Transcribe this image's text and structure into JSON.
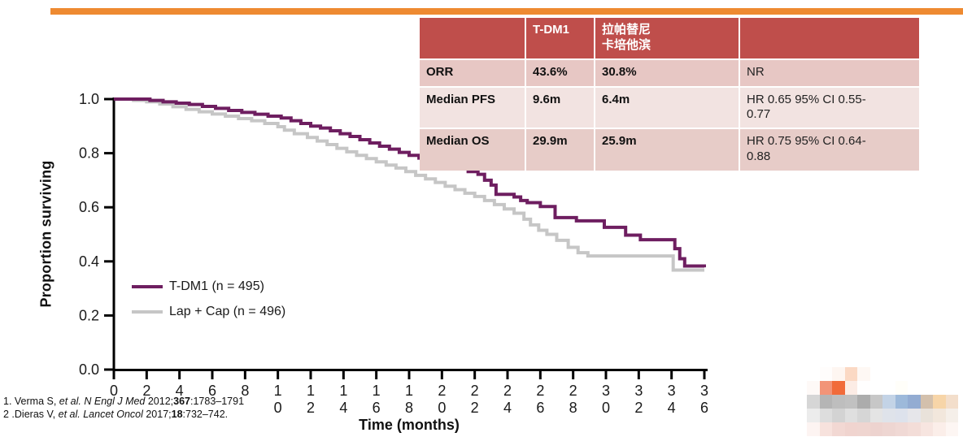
{
  "top_bar": {
    "color": "#ee8a31"
  },
  "table": {
    "header_bg": "#bf4e4b",
    "columns": {
      "c0": "",
      "c1": "T-DM1",
      "c2": "拉帕替尼\n卡培他滨",
      "c3": ""
    },
    "rows": [
      {
        "label": "ORR",
        "tdm1": "43.6%",
        "lapcap": "30.8%",
        "hr": "NR",
        "bg": "#e7c7c4"
      },
      {
        "label": "Median PFS",
        "tdm1": "9.6m",
        "lapcap": "6.4m",
        "hr": "HR 0.65 95% CI 0.55-\n0.77",
        "bg": "#f2e3e1"
      },
      {
        "label": "Median OS",
        "tdm1": "29.9m",
        "lapcap": "25.9m",
        "hr": "HR 0.75 95% CI 0.64-\n0.88",
        "bg": "#e7ccc8"
      }
    ]
  },
  "chart_data": {
    "type": "line",
    "subtype": "kaplan-meier-step",
    "title": "",
    "xlabel": "Time (months)",
    "ylabel": "Proportion surviving",
    "xlim": [
      0,
      36
    ],
    "ylim": [
      0,
      1
    ],
    "xticks": [
      0,
      2,
      4,
      6,
      8,
      10,
      12,
      14,
      16,
      18,
      20,
      22,
      24,
      26,
      28,
      30,
      32,
      34,
      36
    ],
    "yticks": [
      0.0,
      0.2,
      0.4,
      0.6,
      0.8,
      1.0
    ],
    "grid": false,
    "legend_position": "inside-lower-left",
    "legend": [
      {
        "label": "T-DM1 (n = 495)",
        "color": "#6e1e60"
      },
      {
        "label": "Lap + Cap (n = 496)",
        "color": "#c6c6c6"
      }
    ],
    "series": [
      {
        "name": "T-DM1 (n = 495)",
        "color": "#6e1e60",
        "points": [
          [
            0,
            1.0
          ],
          [
            1.6,
            1.0
          ],
          [
            2.2,
            0.995
          ],
          [
            3.0,
            0.99
          ],
          [
            3.8,
            0.985
          ],
          [
            4.6,
            0.98
          ],
          [
            5.4,
            0.973
          ],
          [
            6.2,
            0.966
          ],
          [
            7.0,
            0.958
          ],
          [
            7.8,
            0.951
          ],
          [
            8.6,
            0.944
          ],
          [
            9.4,
            0.937
          ],
          [
            10.2,
            0.93
          ],
          [
            10.8,
            0.92
          ],
          [
            11.4,
            0.91
          ],
          [
            12.0,
            0.9
          ],
          [
            12.6,
            0.893
          ],
          [
            13.2,
            0.883
          ],
          [
            13.8,
            0.872
          ],
          [
            14.4,
            0.862
          ],
          [
            15.0,
            0.85
          ],
          [
            15.6,
            0.838
          ],
          [
            16.2,
            0.826
          ],
          [
            16.8,
            0.815
          ],
          [
            17.4,
            0.803
          ],
          [
            18.0,
            0.792
          ],
          [
            18.6,
            0.782
          ],
          [
            19.2,
            0.772
          ],
          [
            19.8,
            0.762
          ],
          [
            20.4,
            0.752
          ],
          [
            21.0,
            0.742
          ],
          [
            21.6,
            0.732
          ],
          [
            22.2,
            0.722
          ],
          [
            22.6,
            0.7
          ],
          [
            23.0,
            0.682
          ],
          [
            23.3,
            0.648
          ],
          [
            24.4,
            0.638
          ],
          [
            24.8,
            0.625
          ],
          [
            25.2,
            0.617
          ],
          [
            26.0,
            0.603
          ],
          [
            26.9,
            0.562
          ],
          [
            28.2,
            0.55
          ],
          [
            29.9,
            0.526
          ],
          [
            31.2,
            0.497
          ],
          [
            32.1,
            0.48
          ],
          [
            34.2,
            0.447
          ],
          [
            34.5,
            0.41
          ],
          [
            34.8,
            0.383
          ],
          [
            36.0,
            0.378
          ]
        ]
      },
      {
        "name": "Lap + Cap (n = 496)",
        "color": "#c6c6c6",
        "points": [
          [
            0,
            1.0
          ],
          [
            1.2,
            0.995
          ],
          [
            2.0,
            0.99
          ],
          [
            2.8,
            0.982
          ],
          [
            3.6,
            0.972
          ],
          [
            4.4,
            0.962
          ],
          [
            5.2,
            0.953
          ],
          [
            6.0,
            0.945
          ],
          [
            6.8,
            0.937
          ],
          [
            7.6,
            0.928
          ],
          [
            8.4,
            0.92
          ],
          [
            9.2,
            0.91
          ],
          [
            10.0,
            0.898
          ],
          [
            10.4,
            0.885
          ],
          [
            11.0,
            0.872
          ],
          [
            11.8,
            0.858
          ],
          [
            12.4,
            0.845
          ],
          [
            13.0,
            0.832
          ],
          [
            13.6,
            0.818
          ],
          [
            14.2,
            0.805
          ],
          [
            14.8,
            0.792
          ],
          [
            15.4,
            0.78
          ],
          [
            16.0,
            0.768
          ],
          [
            16.6,
            0.756
          ],
          [
            17.2,
            0.745
          ],
          [
            17.8,
            0.732
          ],
          [
            18.4,
            0.718
          ],
          [
            19.0,
            0.705
          ],
          [
            19.6,
            0.692
          ],
          [
            20.2,
            0.678
          ],
          [
            20.8,
            0.665
          ],
          [
            21.4,
            0.652
          ],
          [
            22.0,
            0.64
          ],
          [
            22.6,
            0.625
          ],
          [
            23.2,
            0.61
          ],
          [
            23.8,
            0.594
          ],
          [
            24.4,
            0.578
          ],
          [
            25.0,
            0.556
          ],
          [
            25.4,
            0.535
          ],
          [
            25.9,
            0.515
          ],
          [
            26.4,
            0.5
          ],
          [
            27.0,
            0.478
          ],
          [
            27.7,
            0.452
          ],
          [
            28.3,
            0.432
          ],
          [
            28.9,
            0.42
          ],
          [
            34.1,
            0.368
          ],
          [
            36.0,
            0.368
          ]
        ]
      }
    ]
  },
  "references": [
    [
      {
        "t": "1. Verma S, ",
        "s": ""
      },
      {
        "t": "et al. N Engl J Med ",
        "s": "i"
      },
      {
        "t": "2012;",
        "s": ""
      },
      {
        "t": "367",
        "s": "b"
      },
      {
        "t": ":1783–1791",
        "s": ""
      }
    ],
    [
      {
        "t": "2 .Dieras V, ",
        "s": ""
      },
      {
        "t": "et al. Lancet Oncol ",
        "s": "i"
      },
      {
        "t": "2017;",
        "s": ""
      },
      {
        "t": "18",
        "s": "b"
      },
      {
        "t": ":732–742.",
        "s": ""
      }
    ]
  ],
  "logo": {
    "rows": [
      [
        "#ffffff",
        "#fffdfc",
        "#fef6f1",
        "#fbd9c4",
        "#fef8f4",
        "#ffffff",
        "#ffffff",
        "#ffffff",
        "#ffffff",
        "#ffffff",
        "#ffffff",
        "#ffffff"
      ],
      [
        "#fef9f7",
        "#f29478",
        "#f16b3a",
        "#fcece5",
        "#fffefe",
        "#ffffff",
        "#ffffff",
        "#fffef9",
        "#ffffff",
        "#ffffff",
        "#ffffff",
        "#ffffff"
      ],
      [
        "#d6d6d6",
        "#b5b5b5",
        "#bebebe",
        "#c1c1c1",
        "#acacac",
        "#c7c7c7",
        "#c3d3e6",
        "#9db9da",
        "#93acd2",
        "#d3c0ac",
        "#f7d5a8",
        "#f3decb"
      ],
      [
        "#ececec",
        "#dddddd",
        "#d3d3d3",
        "#dfdfdf",
        "#d6d6d6",
        "#e4e4e4",
        "#dfe3ea",
        "#dde2ec",
        "#e6e6ea",
        "#e9e2da",
        "#f2e7dc",
        "#f5efe9"
      ],
      [
        "#fdf4f2",
        "#f7e2dd",
        "#f2d8d3",
        "#f0d4cf",
        "#efd5d0",
        "#edd3cf",
        "#eed6d2",
        "#f0d9d5",
        "#f3ddd8",
        "#f7e5e0",
        "#fbeee9",
        "#fdf6f3"
      ]
    ]
  }
}
